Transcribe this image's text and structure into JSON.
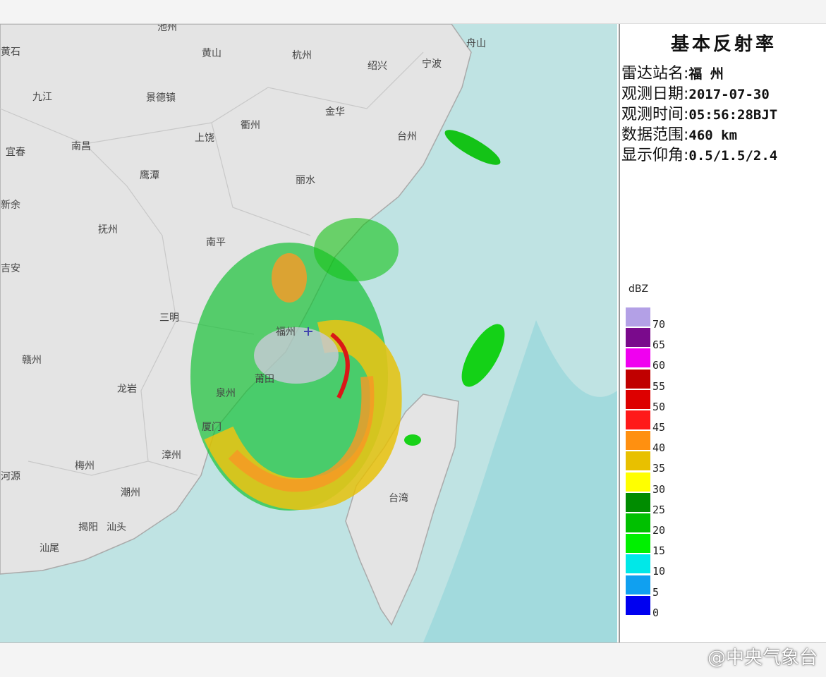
{
  "panel": {
    "title": "基本反射率",
    "info": [
      {
        "label": "雷达站名:",
        "value": "福 州"
      },
      {
        "label": "观测日期:",
        "value": "2017-07-30"
      },
      {
        "label": "观测时间:",
        "value": "05:56:28BJT"
      },
      {
        "label": "数据范围:",
        "value": "460 km"
      },
      {
        "label": "显示仰角:",
        "value": "0.5/1.5/2.4"
      }
    ]
  },
  "legend": {
    "unit": "dBZ",
    "levels": [
      {
        "value": 70,
        "color": "#b3a0e6"
      },
      {
        "value": 65,
        "color": "#7a0a8c"
      },
      {
        "value": 60,
        "color": "#f000f0"
      },
      {
        "value": 55,
        "color": "#c00000"
      },
      {
        "value": 50,
        "color": "#dd0000"
      },
      {
        "value": 45,
        "color": "#ff1a1a"
      },
      {
        "value": 40,
        "color": "#ff9010"
      },
      {
        "value": 35,
        "color": "#e8c000"
      },
      {
        "value": 30,
        "color": "#ffff00"
      },
      {
        "value": 25,
        "color": "#008c00"
      },
      {
        "value": 20,
        "color": "#00c000"
      },
      {
        "value": 15,
        "color": "#00f000"
      },
      {
        "value": 10,
        "color": "#00e8e8"
      },
      {
        "value": 5,
        "color": "#10a0f0"
      },
      {
        "value": 0,
        "color": "#0000f0"
      }
    ]
  },
  "map": {
    "cities": [
      "黄石",
      "池州",
      "黄山",
      "杭州",
      "绍兴",
      "宁波",
      "舟山",
      "九江",
      "景德镇",
      "金华",
      "衢州",
      "台州",
      "南昌",
      "上饶",
      "宜春",
      "鹰潭",
      "丽水",
      "新余",
      "抚州",
      "南平",
      "吉安",
      "三明",
      "福州",
      "莆田",
      "赣州",
      "龙岩",
      "泉州",
      "厦门",
      "漳州",
      "河源",
      "梅州",
      "潮州",
      "揭阳",
      "汕头",
      "汕尾",
      "台湾"
    ]
  },
  "watermark": "@中央气象台"
}
